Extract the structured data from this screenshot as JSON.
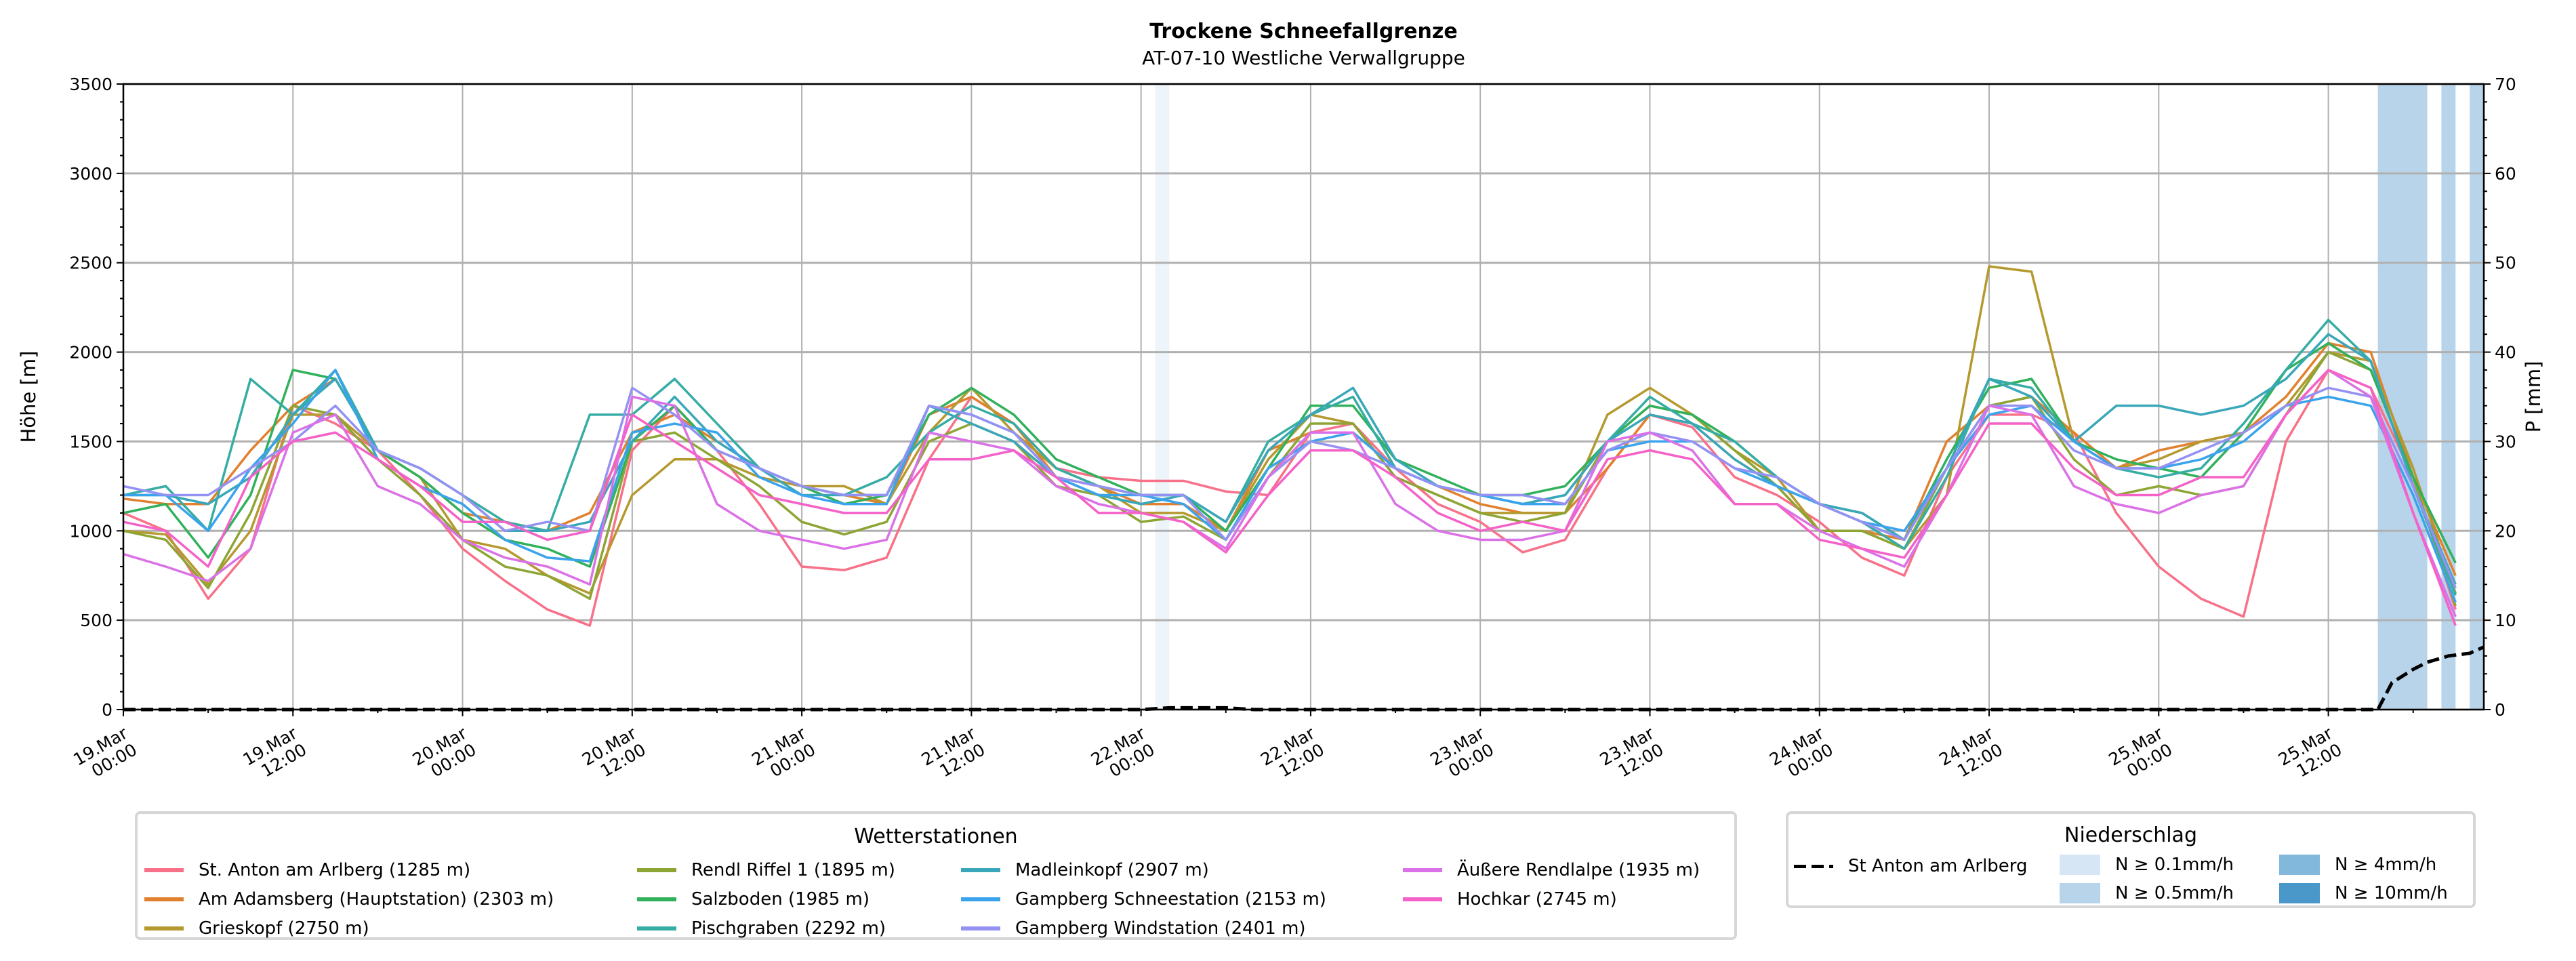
{
  "chart_data": {
    "type": "line",
    "title": "Trockene Schneefallgrenze",
    "subtitle": "AT-07-10 Westliche Verwallgruppe",
    "ylabel": "Höhe [m]",
    "ylabel_right": "P [mm]",
    "ylim": [
      0,
      3500
    ],
    "ylim_right": [
      0,
      70
    ],
    "yticks": [
      "0",
      "500",
      "1000",
      "1500",
      "2000",
      "2500",
      "3000",
      "3500"
    ],
    "yticks_right": [
      "0",
      "10",
      "20",
      "30",
      "40",
      "50",
      "60",
      "70"
    ],
    "x_unit": "hours since 19.Mar 00:00",
    "xlim": [
      0,
      167
    ],
    "xticks": [
      {
        "date": "19.Mar",
        "time": "00:00"
      },
      {
        "date": "19.Mar",
        "time": "12:00"
      },
      {
        "date": "20.Mar",
        "time": "00:00"
      },
      {
        "date": "20.Mar",
        "time": "12:00"
      },
      {
        "date": "21.Mar",
        "time": "00:00"
      },
      {
        "date": "21.Mar",
        "time": "12:00"
      },
      {
        "date": "22.Mar",
        "time": "00:00"
      },
      {
        "date": "22.Mar",
        "time": "12:00"
      },
      {
        "date": "23.Mar",
        "time": "00:00"
      },
      {
        "date": "23.Mar",
        "time": "12:00"
      },
      {
        "date": "24.Mar",
        "time": "00:00"
      },
      {
        "date": "24.Mar",
        "time": "12:00"
      },
      {
        "date": "25.Mar",
        "time": "00:00"
      },
      {
        "date": "25.Mar",
        "time": "12:00"
      }
    ],
    "grid": true,
    "x_step_hours": 3,
    "series": [
      {
        "name": "St. Anton am Arlberg (1285 m)",
        "color": "#f77189",
        "values": [
          1100,
          1000,
          620,
          900,
          1700,
          1600,
          1450,
          1200,
          900,
          720,
          560,
          470,
          1450,
          1700,
          1450,
          1150,
          800,
          780,
          850,
          1400,
          1750,
          1600,
          1350,
          1300,
          1280,
          1280,
          1220,
          1200,
          1550,
          1600,
          1350,
          1150,
          1050,
          880,
          950,
          1350,
          1650,
          1580,
          1300,
          1200,
          1050,
          850,
          750,
          1300,
          1650,
          1650,
          1550,
          1100,
          800,
          620,
          520,
          1500,
          1900,
          1800,
          1300,
          560
        ]
      },
      {
        "name": "Am Adamsberg (Hauptstation) (2303 m)",
        "color": "#e1812f",
        "values": [
          1180,
          1150,
          1150,
          1450,
          1700,
          1850,
          1450,
          1300,
          1100,
          1050,
          1000,
          1100,
          1550,
          1650,
          1500,
          1350,
          1250,
          1200,
          1150,
          1650,
          1750,
          1600,
          1300,
          1250,
          1150,
          1150,
          1000,
          1450,
          1550,
          1550,
          1350,
          1250,
          1150,
          1100,
          1100,
          1350,
          1650,
          1600,
          1400,
          1250,
          1000,
          1000,
          950,
          1500,
          1700,
          1750,
          1550,
          1350,
          1450,
          1500,
          1550,
          1750,
          2050,
          2000,
          1300,
          750
        ]
      },
      {
        "name": "Grieskopf (2750 m)",
        "color": "#b5992e",
        "values": [
          1000,
          980,
          700,
          1000,
          1650,
          1650,
          1450,
          1300,
          950,
          900,
          750,
          650,
          1200,
          1400,
          1400,
          1300,
          1250,
          1250,
          1150,
          1550,
          1800,
          1550,
          1350,
          1250,
          1100,
          1100,
          1000,
          1400,
          1650,
          1600,
          1300,
          1200,
          1100,
          1100,
          1100,
          1650,
          1800,
          1650,
          1450,
          1300,
          1000,
          1000,
          900,
          1200,
          2480,
          2450,
          1500,
          1350,
          1400,
          1500,
          1550,
          1700,
          2000,
          1950,
          1350,
          650
        ]
      },
      {
        "name": "Rendl Riffel 1 (1895 m)",
        "color": "#8da535",
        "values": [
          1000,
          950,
          680,
          1100,
          1700,
          1650,
          1400,
          1200,
          950,
          800,
          750,
          620,
          1500,
          1550,
          1400,
          1250,
          1050,
          980,
          1050,
          1500,
          1600,
          1500,
          1250,
          1200,
          1050,
          1080,
          950,
          1300,
          1600,
          1600,
          1300,
          1200,
          1100,
          1050,
          1100,
          1500,
          1700,
          1650,
          1450,
          1250,
          1000,
          1000,
          900,
          1350,
          1700,
          1750,
          1400,
          1200,
          1250,
          1200,
          1250,
          1650,
          2000,
          1900,
          1300,
          580
        ]
      },
      {
        "name": "Salzboden (1985 m)",
        "color": "#31b15c",
        "values": [
          1100,
          1150,
          850,
          1200,
          1900,
          1850,
          1450,
          1300,
          1100,
          950,
          900,
          800,
          1500,
          1700,
          1450,
          1350,
          1250,
          1150,
          1200,
          1650,
          1800,
          1650,
          1400,
          1300,
          1200,
          1200,
          1000,
          1350,
          1700,
          1700,
          1400,
          1300,
          1200,
          1200,
          1250,
          1500,
          1700,
          1650,
          1500,
          1300,
          1150,
          1100,
          950,
          1400,
          1800,
          1850,
          1500,
          1400,
          1350,
          1300,
          1550,
          1900,
          2050,
          1900,
          1300,
          820
        ]
      },
      {
        "name": "Pischgraben (2292 m)",
        "color": "#36ada4",
        "values": [
          1200,
          1250,
          1000,
          1850,
          1650,
          1900,
          1450,
          1350,
          1200,
          1050,
          1000,
          1650,
          1650,
          1850,
          1600,
          1350,
          1250,
          1200,
          1300,
          1550,
          1700,
          1600,
          1350,
          1250,
          1200,
          1200,
          1050,
          1500,
          1650,
          1750,
          1350,
          1250,
          1200,
          1150,
          1200,
          1500,
          1750,
          1600,
          1500,
          1300,
          1150,
          1050,
          900,
          1300,
          1850,
          1800,
          1500,
          1350,
          1300,
          1350,
          1600,
          1900,
          2180,
          1950,
          1250,
          640
        ]
      },
      {
        "name": "Madleinkopf (2907 m)",
        "color": "#39a7b9",
        "values": [
          1200,
          1200,
          1150,
          1300,
          1650,
          1850,
          1450,
          1350,
          1200,
          1000,
          1000,
          1050,
          1500,
          1750,
          1500,
          1350,
          1200,
          1200,
          1200,
          1700,
          1600,
          1500,
          1300,
          1200,
          1150,
          1200,
          1050,
          1450,
          1650,
          1800,
          1400,
          1250,
          1200,
          1150,
          1200,
          1500,
          1650,
          1600,
          1400,
          1250,
          1150,
          1100,
          950,
          1350,
          1850,
          1750,
          1500,
          1700,
          1700,
          1650,
          1700,
          1850,
          2100,
          1950,
          1250,
          700
        ]
      },
      {
        "name": "Gampberg Schneestation (2153 m)",
        "color": "#3ba3ec",
        "values": [
          1200,
          1200,
          1000,
          1350,
          1600,
          1900,
          1400,
          1250,
          1150,
          950,
          850,
          830,
          1550,
          1600,
          1550,
          1300,
          1200,
          1150,
          1150,
          1700,
          1650,
          1550,
          1300,
          1200,
          1200,
          1150,
          950,
          1350,
          1500,
          1550,
          1350,
          1250,
          1200,
          1150,
          1150,
          1450,
          1500,
          1500,
          1350,
          1250,
          1150,
          1050,
          1000,
          1350,
          1650,
          1700,
          1500,
          1350,
          1350,
          1400,
          1500,
          1700,
          1750,
          1700,
          1200,
          600
        ]
      },
      {
        "name": "Gampberg Windstation (2401 m)",
        "color": "#9591f3",
        "values": [
          1250,
          1200,
          1200,
          1350,
          1500,
          1700,
          1450,
          1350,
          1200,
          1000,
          1050,
          1000,
          1800,
          1650,
          1450,
          1350,
          1250,
          1200,
          1200,
          1700,
          1650,
          1550,
          1300,
          1250,
          1200,
          1200,
          950,
          1300,
          1500,
          1450,
          1350,
          1250,
          1200,
          1200,
          1150,
          1450,
          1550,
          1500,
          1350,
          1300,
          1150,
          1050,
          950,
          1350,
          1700,
          1700,
          1450,
          1350,
          1350,
          1450,
          1550,
          1700,
          1800,
          1750,
          1250,
          680
        ]
      },
      {
        "name": "Äußere Rendlalpe (1935 m)",
        "color": "#db71e6",
        "values": [
          870,
          800,
          720,
          900,
          1550,
          1650,
          1250,
          1150,
          950,
          850,
          800,
          700,
          1750,
          1700,
          1150,
          1000,
          950,
          900,
          950,
          1550,
          1500,
          1450,
          1250,
          1150,
          1100,
          1050,
          900,
          1300,
          1550,
          1550,
          1150,
          1000,
          950,
          950,
          1000,
          1500,
          1550,
          1450,
          1150,
          1150,
          1000,
          900,
          800,
          1200,
          1700,
          1650,
          1250,
          1150,
          1100,
          1200,
          1250,
          1650,
          1900,
          1750,
          1100,
          520
        ]
      },
      {
        "name": "Hochkar (2745 m)",
        "color": "#f461c8",
        "values": [
          1050,
          1000,
          800,
          1300,
          1500,
          1550,
          1400,
          1250,
          1050,
          1050,
          950,
          1000,
          1650,
          1500,
          1350,
          1200,
          1150,
          1100,
          1100,
          1400,
          1400,
          1450,
          1300,
          1100,
          1100,
          1050,
          880,
          1200,
          1450,
          1450,
          1300,
          1100,
          1000,
          1050,
          1000,
          1400,
          1450,
          1400,
          1150,
          1150,
          950,
          900,
          850,
          1200,
          1600,
          1600,
          1350,
          1200,
          1200,
          1300,
          1300,
          1650,
          1900,
          1800,
          1100,
          470
        ]
      }
    ],
    "precipitation": {
      "name": "St Anton am Arlberg",
      "color": "#000000",
      "points": [
        [
          0,
          0
        ],
        [
          72,
          0
        ],
        [
          74,
          0.2
        ],
        [
          78,
          0.2
        ],
        [
          80,
          0
        ],
        [
          159.5,
          0
        ],
        [
          160.5,
          3
        ],
        [
          162,
          4.5
        ],
        [
          163,
          5.3
        ],
        [
          164.5,
          6
        ],
        [
          165.5,
          6.2
        ],
        [
          166,
          6.3
        ],
        [
          167,
          7
        ]
      ]
    },
    "precip_bands": [
      {
        "start": 73,
        "end": 74,
        "level": "0.1"
      },
      {
        "start": 159.5,
        "end": 163,
        "level": "0.5"
      },
      {
        "start": 164,
        "end": 165,
        "level": "0.5"
      },
      {
        "start": 166,
        "end": 167,
        "level": "0.5"
      }
    ],
    "legend_stations": {
      "title": "Wetterstationen",
      "placement": "bottom-left"
    },
    "legend_precip": {
      "title": "Niederschlag",
      "placement": "bottom-right",
      "line_label": "St Anton am Arlberg",
      "levels": [
        {
          "key": "0.1",
          "label": "N ≥ 0.1mm/h",
          "color": "#d6e6f4"
        },
        {
          "key": "0.5",
          "label": "N ≥ 0.5mm/h",
          "color": "#b8d4ea"
        },
        {
          "key": "4",
          "label": "N ≥ 4mm/h",
          "color": "#82b8db"
        },
        {
          "key": "10",
          "label": "N ≥ 10mm/h",
          "color": "#4a97c9"
        }
      ]
    }
  }
}
